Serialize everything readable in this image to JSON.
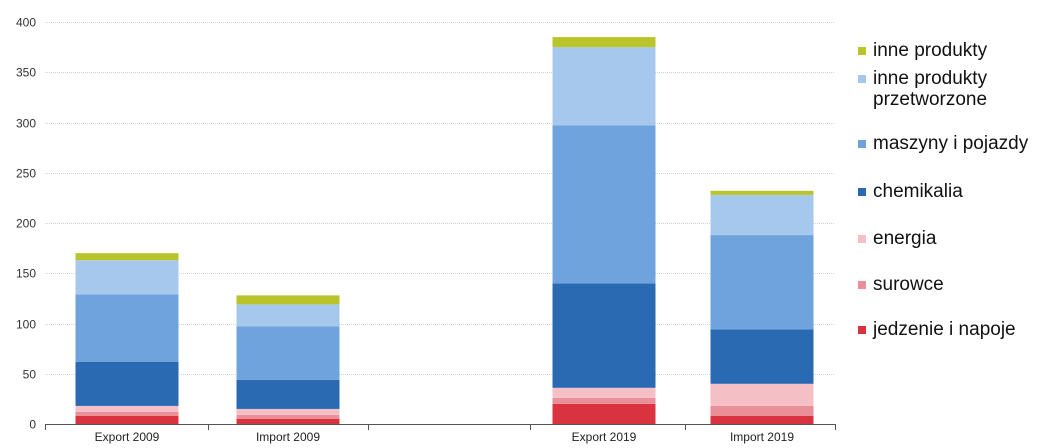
{
  "chart_data": {
    "type": "bar",
    "stacked": true,
    "categories": [
      "Export 2009",
      "Import 2009",
      "Export 2019",
      "Import 2019"
    ],
    "ylim": [
      0,
      400
    ],
    "yticks": [
      0,
      50,
      100,
      150,
      200,
      250,
      300,
      350,
      400
    ],
    "grid": true,
    "legend_position": "right",
    "series": [
      {
        "name": "jedzenie i napoje",
        "color": "#d9333f",
        "values": [
          8,
          5,
          20,
          8
        ]
      },
      {
        "name": "surowce",
        "color": "#ea8f98",
        "values": [
          4,
          4,
          6,
          10
        ]
      },
      {
        "name": "energia",
        "color": "#f4bfc5",
        "values": [
          6,
          6,
          10,
          22
        ]
      },
      {
        "name": "chemikalia",
        "color": "#2a6ab3",
        "values": [
          44,
          29,
          104,
          54
        ]
      },
      {
        "name": "maszyny i pojazdy",
        "color": "#6fa3dd",
        "values": [
          67,
          53,
          157,
          94
        ]
      },
      {
        "name": "inne produkty przetworzone",
        "color": "#a6c8ec",
        "values": [
          34,
          22,
          78,
          40
        ]
      },
      {
        "name": "inne produkty",
        "color": "#b9c42a",
        "values": [
          7,
          9,
          10,
          4
        ]
      }
    ]
  }
}
